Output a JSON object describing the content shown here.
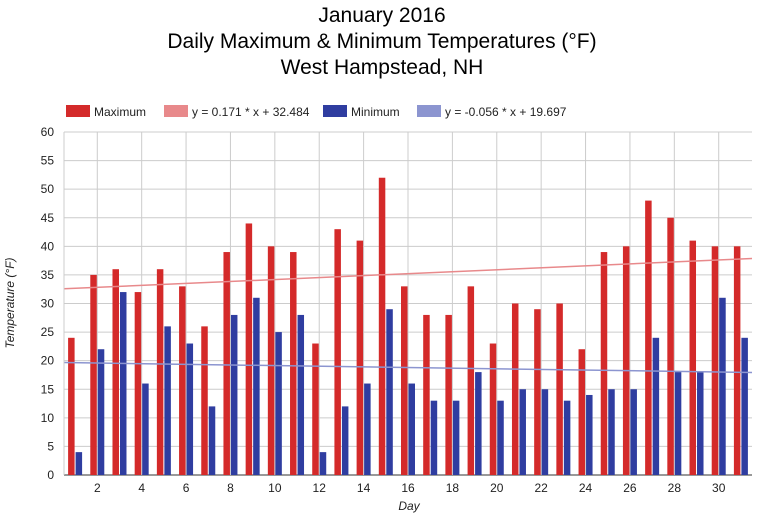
{
  "chart_data": {
    "type": "bar",
    "title": [
      "January 2016",
      "Daily Maximum & Minimum Temperatures (°F)",
      "West Hampstead, NH"
    ],
    "xlabel": "Day",
    "ylabel": "Temperature (°F)",
    "ylim": [
      0,
      60
    ],
    "yticks": [
      0,
      5,
      10,
      15,
      20,
      25,
      30,
      35,
      40,
      45,
      50,
      55,
      60
    ],
    "xticks": [
      2,
      4,
      6,
      8,
      10,
      12,
      14,
      16,
      18,
      20,
      22,
      24,
      26,
      28,
      30
    ],
    "grid": true,
    "legend_position": "top",
    "categories": [
      1,
      2,
      3,
      4,
      5,
      6,
      7,
      8,
      9,
      10,
      11,
      12,
      13,
      14,
      15,
      16,
      17,
      18,
      19,
      20,
      21,
      22,
      23,
      24,
      25,
      26,
      27,
      28,
      29,
      30,
      31
    ],
    "series": [
      {
        "name": "Maximum",
        "color": "#d42a2a",
        "values": [
          24,
          35,
          36,
          32,
          36,
          33,
          26,
          39,
          44,
          40,
          39,
          23,
          43,
          41,
          52,
          33,
          28,
          28,
          33,
          23,
          30,
          29,
          30,
          22,
          39,
          40,
          48,
          45,
          41,
          40,
          40
        ]
      },
      {
        "name": "Minimum",
        "color": "#2f3da0",
        "values": [
          4,
          22,
          32,
          16,
          26,
          23,
          12,
          28,
          31,
          25,
          28,
          4,
          12,
          16,
          29,
          16,
          13,
          13,
          18,
          13,
          15,
          15,
          13,
          14,
          15,
          15,
          24,
          18,
          18,
          31,
          24
        ]
      }
    ],
    "trendlines": [
      {
        "name": "y = 0.171 * x + 32.484",
        "slope": 0.171,
        "intercept": 32.484,
        "color": "#e8898b"
      },
      {
        "name": "y = -0.056 * x + 19.697",
        "slope": -0.056,
        "intercept": 19.697,
        "color": "#8c95d0"
      }
    ]
  }
}
